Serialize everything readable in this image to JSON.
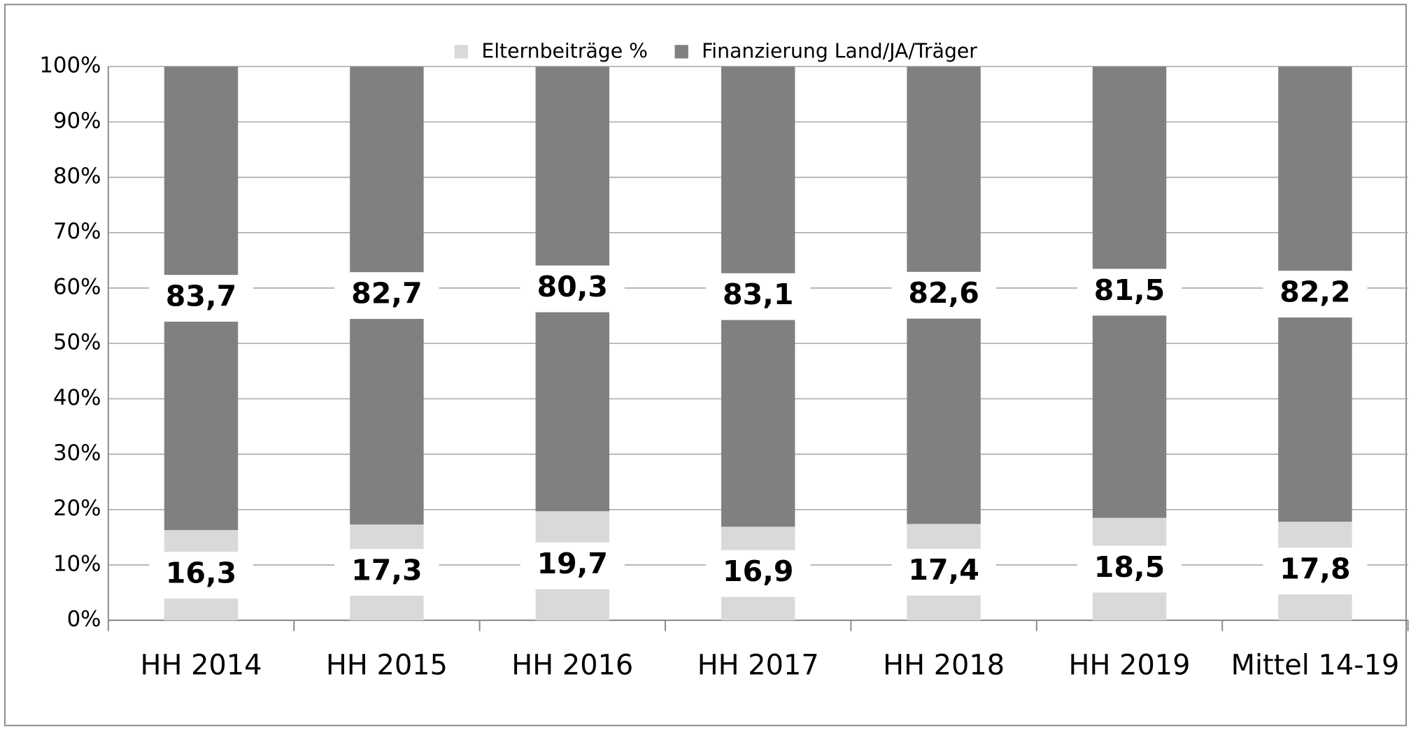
{
  "chart_data": {
    "type": "stacked_bar",
    "categories": [
      "HH 2014",
      "HH 2015",
      "HH 2016",
      "HH 2017",
      "HH 2018",
      "HH 2019",
      "Mittel 14-19"
    ],
    "series": [
      {
        "name": "Elternbeiträge %",
        "color": "#d9d9d9",
        "values": [
          16.3,
          17.3,
          19.7,
          16.9,
          17.4,
          18.5,
          17.8
        ],
        "value_labels": [
          "16,3",
          "17,3",
          "19,7",
          "16,9",
          "17,4",
          "18,5",
          "17,8"
        ]
      },
      {
        "name": "Finanzierung Land/JA/Träger",
        "color": "#808080",
        "values": [
          83.7,
          82.7,
          80.3,
          83.1,
          82.6,
          81.5,
          82.2
        ],
        "value_labels": [
          "83,7",
          "82,7",
          "80,3",
          "83,1",
          "82,6",
          "81,5",
          "82,2"
        ]
      }
    ],
    "ylim": [
      0,
      100
    ],
    "yticks": [
      {
        "value": 0,
        "label": "0%"
      },
      {
        "value": 10,
        "label": "10%"
      },
      {
        "value": 20,
        "label": "20%"
      },
      {
        "value": 30,
        "label": "30%"
      },
      {
        "value": 40,
        "label": "40%"
      },
      {
        "value": 50,
        "label": "50%"
      },
      {
        "value": 60,
        "label": "60%"
      },
      {
        "value": 70,
        "label": "70%"
      },
      {
        "value": 80,
        "label": "80%"
      },
      {
        "value": 90,
        "label": "90%"
      },
      {
        "value": 100,
        "label": "100%"
      }
    ],
    "grid": true,
    "legend": "top"
  }
}
